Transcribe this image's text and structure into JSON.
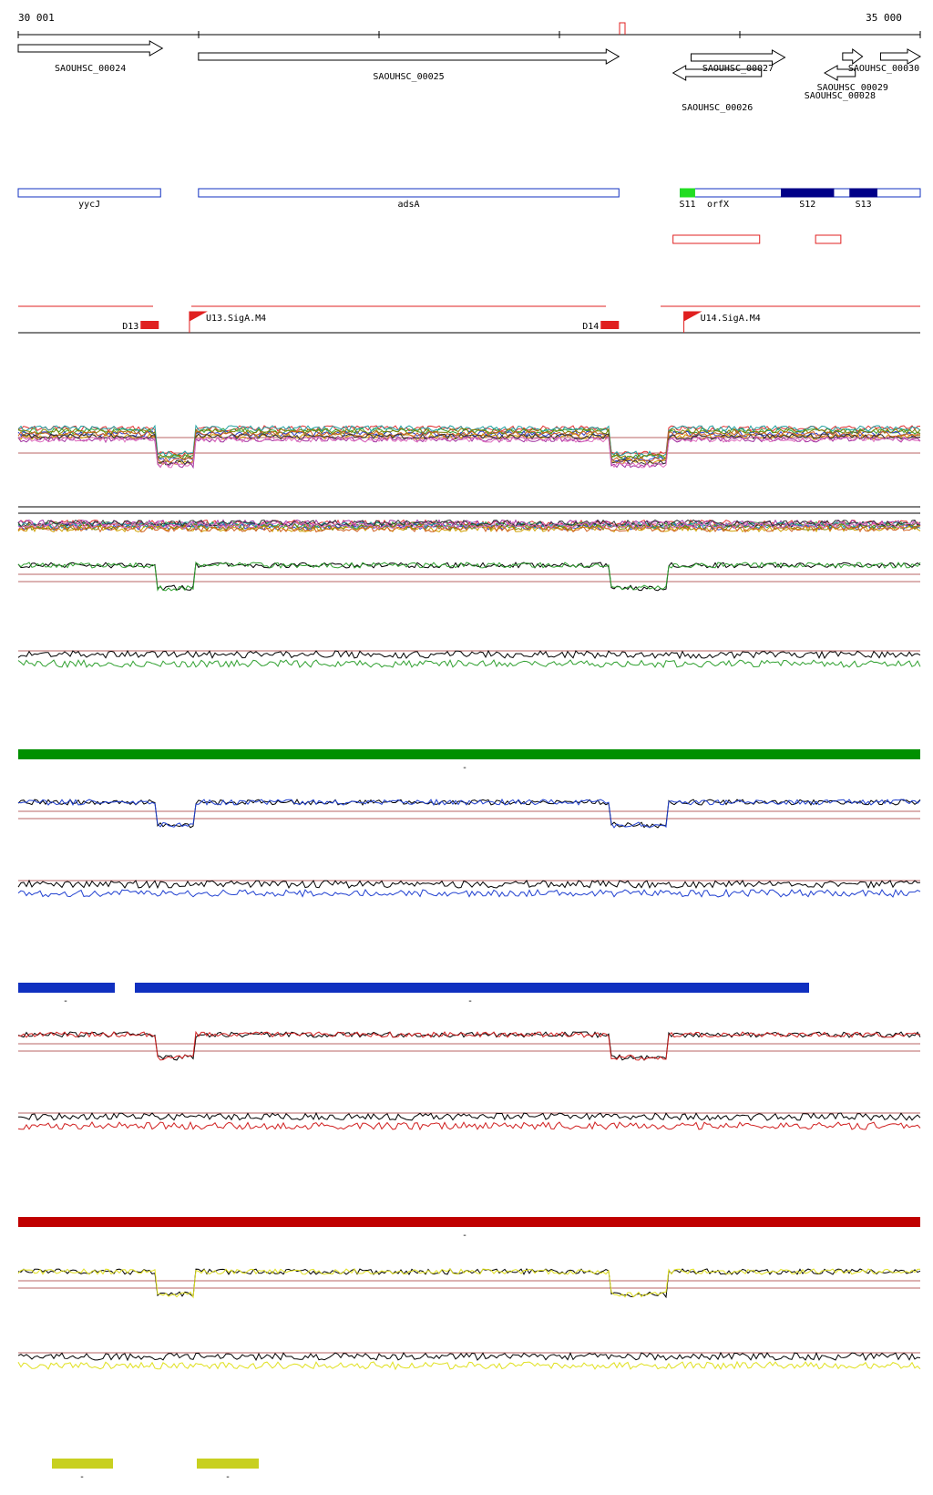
{
  "coordinate_range": {
    "start_label": "30 001",
    "end_label": "35 000",
    "start": 30001,
    "end": 35000
  },
  "genes": [
    {
      "name": "SAOUHSC_00024",
      "strand": "+",
      "start": 30001,
      "end": 30800
    },
    {
      "name": "SAOUHSC_00025",
      "strand": "+",
      "start": 31000,
      "end": 33330
    },
    {
      "name": "SAOUHSC_00026",
      "strand": "-",
      "start": 33630,
      "end": 34120
    },
    {
      "name": "SAOUHSC_00027",
      "strand": "+",
      "start": 33730,
      "end": 34250
    },
    {
      "name": "SAOUHSC_00028",
      "strand": "-",
      "start": 34470,
      "end": 34640
    },
    {
      "name": "SAOUHSC_00029",
      "strand": "+",
      "start": 34570,
      "end": 34680
    },
    {
      "name": "SAOUHSC_00030",
      "strand": "+",
      "start": 34780,
      "end": 35000
    }
  ],
  "annotations": [
    {
      "name": "yycJ",
      "start": 30001,
      "end": 30790
    },
    {
      "name": "adsA",
      "start": 31000,
      "end": 33330
    }
  ],
  "orfx_block": {
    "name": "orfX",
    "start": 33670,
    "end": 35000,
    "segments": [
      {
        "name": "S11",
        "start": 33670,
        "end": 33750,
        "color": "#22dd22"
      },
      {
        "name": "S12",
        "start": 34230,
        "end": 34520,
        "color": "#000088"
      },
      {
        "name": "S13",
        "start": 34610,
        "end": 34760,
        "color": "#000088"
      }
    ]
  },
  "red_regions": [
    {
      "start": 33630,
      "end": 34110
    },
    {
      "start": 34420,
      "end": 34560
    }
  ],
  "promoters": [
    {
      "name": "U13.SigA.M4",
      "position": 30950,
      "strand": "+"
    },
    {
      "name": "U14.SigA.M4",
      "position": 33690,
      "strand": "+"
    }
  ],
  "terminators": [
    {
      "name": "D13",
      "position": 30780
    },
    {
      "name": "D14",
      "position": 33330
    }
  ],
  "tracks": [
    {
      "id": "multi-condition",
      "colors": [
        "#e03030",
        "#30a030",
        "#3040d0",
        "#d0a000",
        "#a030a0",
        "#20a0a0",
        "#808000",
        "#d06020",
        "#303030",
        "#e070c0"
      ]
    },
    {
      "id": "green-condition",
      "line_colors": [
        "#000000",
        "#30a030"
      ],
      "bar_color": "#009000",
      "bar_label": "-"
    },
    {
      "id": "blue-condition",
      "line_colors": [
        "#000000",
        "#2040d0"
      ],
      "bar_color": "#1030c0",
      "bar_labels": [
        "-",
        "-"
      ]
    },
    {
      "id": "red-condition",
      "line_colors": [
        "#000000",
        "#d02020"
      ],
      "bar_color": "#c00000",
      "bar_label": "-"
    },
    {
      "id": "yellow-condition",
      "line_colors": [
        "#000000",
        "#e0e020"
      ],
      "bar_color": "#c8d020",
      "bar_labels": [
        "-",
        "-"
      ]
    }
  ]
}
